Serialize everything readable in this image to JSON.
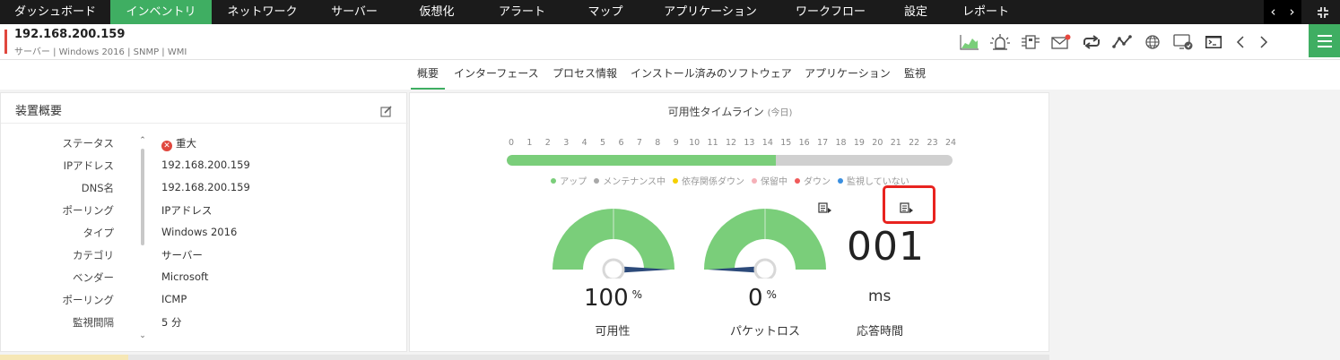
{
  "nav": {
    "tabs": [
      {
        "label": "ダッシュボード",
        "active": false
      },
      {
        "label": "インベントリ",
        "active": true
      },
      {
        "label": "ネットワーク",
        "active": false
      },
      {
        "label": "サーバー",
        "active": false
      },
      {
        "label": "仮想化",
        "active": false
      },
      {
        "label": "アラート",
        "active": false
      },
      {
        "label": "マップ",
        "active": false
      },
      {
        "label": "アプリケーション",
        "active": false
      },
      {
        "label": "ワークフロー",
        "active": false
      },
      {
        "label": "設定",
        "active": false
      },
      {
        "label": "レポート",
        "active": false
      }
    ],
    "prev": "‹",
    "next": "›"
  },
  "device": {
    "ip": "192.168.200.159",
    "subtitle": "サーバー | Windows 2016 | SNMP | WMI"
  },
  "toolbar_icons": [
    "chart-icon",
    "alarm-icon",
    "network-icon",
    "mail-icon",
    "sync-icon",
    "graph-icon",
    "globe-icon",
    "monitor-icon",
    "terminal-icon",
    "chevron-left-icon",
    "chevron-right-icon"
  ],
  "subtabs": [
    {
      "label": "概要",
      "active": true
    },
    {
      "label": "インターフェース",
      "active": false
    },
    {
      "label": "プロセス情報",
      "active": false
    },
    {
      "label": "インストール済みのソフトウェア",
      "active": false
    },
    {
      "label": "アプリケーション",
      "active": false
    },
    {
      "label": "監視",
      "active": false
    }
  ],
  "summary": {
    "title": "装置概要",
    "rows": [
      {
        "key": "ステータス",
        "value": "重大"
      },
      {
        "key": "IPアドレス",
        "value": "192.168.200.159"
      },
      {
        "key": "DNS名",
        "value": "192.168.200.159"
      },
      {
        "key": "ポーリング",
        "value": "IPアドレス"
      },
      {
        "key": "タイプ",
        "value": "Windows 2016"
      },
      {
        "key": "カテゴリ",
        "value": "サーバー"
      },
      {
        "key": "ベンダー",
        "value": "Microsoft"
      },
      {
        "key": "ポーリング",
        "value": "ICMP"
      },
      {
        "key": "監視間隔",
        "value": "5 分"
      }
    ]
  },
  "timeline": {
    "title": "可用性タイムライン",
    "period": "(今日)",
    "hours": [
      "0",
      "1",
      "2",
      "3",
      "4",
      "5",
      "6",
      "7",
      "8",
      "9",
      "10",
      "11",
      "12",
      "13",
      "14",
      "15",
      "16",
      "17",
      "18",
      "19",
      "20",
      "21",
      "22",
      "23",
      "24"
    ],
    "up_until_hour": 14.5,
    "legend": [
      {
        "label": "アップ",
        "color": "#7ace7a"
      },
      {
        "label": "メンテナンス中",
        "color": "#a8a8a8"
      },
      {
        "label": "依存関係ダウン",
        "color": "#f5d000"
      },
      {
        "label": "保留中",
        "color": "#f5b0b8"
      },
      {
        "label": "ダウン",
        "color": "#f05a5a"
      },
      {
        "label": "監視していない",
        "color": "#3a8fe0"
      }
    ]
  },
  "metrics": {
    "availability": {
      "value": "100",
      "unit": "%",
      "label": "可用性",
      "fraction": 1.0
    },
    "packet_loss": {
      "value": "0",
      "unit": "%",
      "label": "パケットロス",
      "fraction": 0.0
    },
    "response": {
      "value": "001",
      "unit": "ms",
      "label": "応答時間"
    }
  },
  "colors": {
    "accent": "#3fae62",
    "gauge": "#7ace7a",
    "needle": "#2c4a7a",
    "critical": "#e0473e"
  }
}
